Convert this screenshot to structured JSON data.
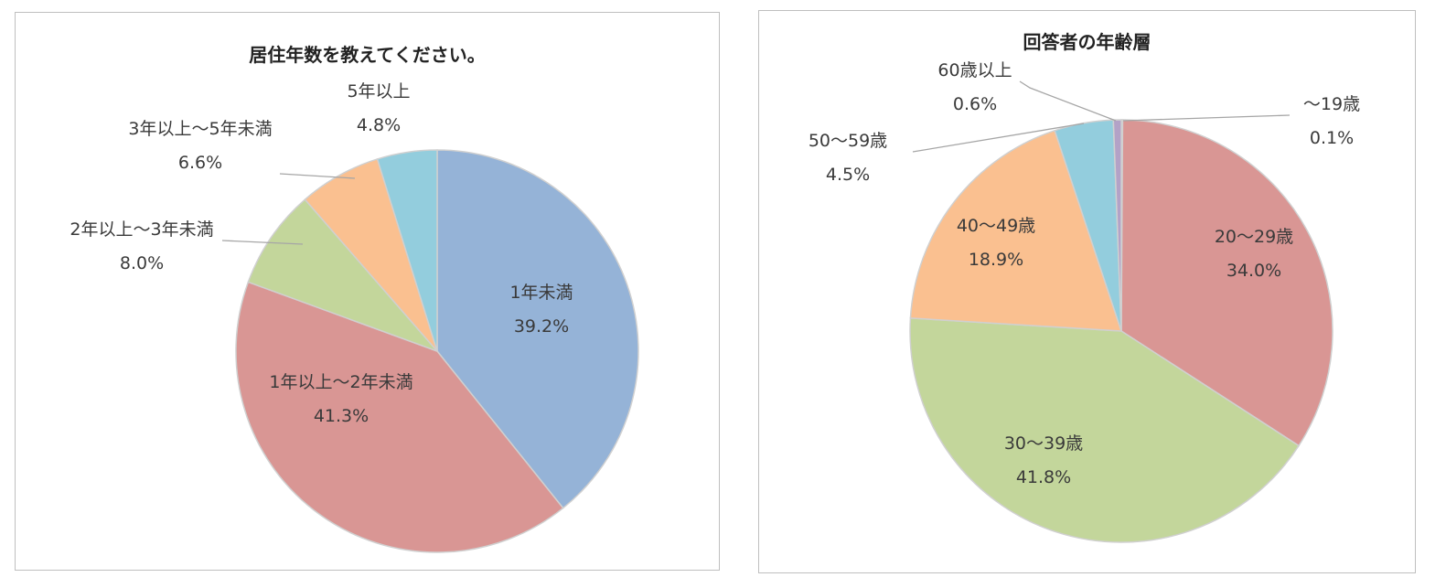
{
  "chart_data": [
    {
      "type": "pie",
      "title": "居住年数を教えてください。",
      "colors": [
        "#95b3d7",
        "#d99694",
        "#c3d69b",
        "#fac090",
        "#93cddd"
      ],
      "slices": [
        {
          "label": "1年未満",
          "value": 39.2,
          "value_label": "39.2%"
        },
        {
          "label": "1年以上〜2年未満",
          "value": 41.3,
          "value_label": "41.3%"
        },
        {
          "label": "2年以上〜3年未満",
          "value": 8.0,
          "value_label": "8.0%"
        },
        {
          "label": "3年以上〜5年未満",
          "value": 6.6,
          "value_label": "6.6%"
        },
        {
          "label": "5年以上",
          "value": 4.8,
          "value_label": "4.8%"
        }
      ]
    },
    {
      "type": "pie",
      "title": "回答者の年齢層",
      "colors": [
        "#b3a2c7",
        "#d99694",
        "#c3d69b",
        "#fac090",
        "#93cddd",
        "#b3a2c7"
      ],
      "slices": [
        {
          "label": "〜19歳",
          "value": 0.1,
          "value_label": "0.1%"
        },
        {
          "label": "20〜29歳",
          "value": 34.0,
          "value_label": "34.0%"
        },
        {
          "label": "30〜39歳",
          "value": 41.8,
          "value_label": "41.8%"
        },
        {
          "label": "40〜49歳",
          "value": 18.9,
          "value_label": "18.9%"
        },
        {
          "label": "50〜59歳",
          "value": 4.5,
          "value_label": "4.5%"
        },
        {
          "label": "60歳以上",
          "value": 0.6,
          "value_label": "0.6%"
        }
      ]
    }
  ]
}
